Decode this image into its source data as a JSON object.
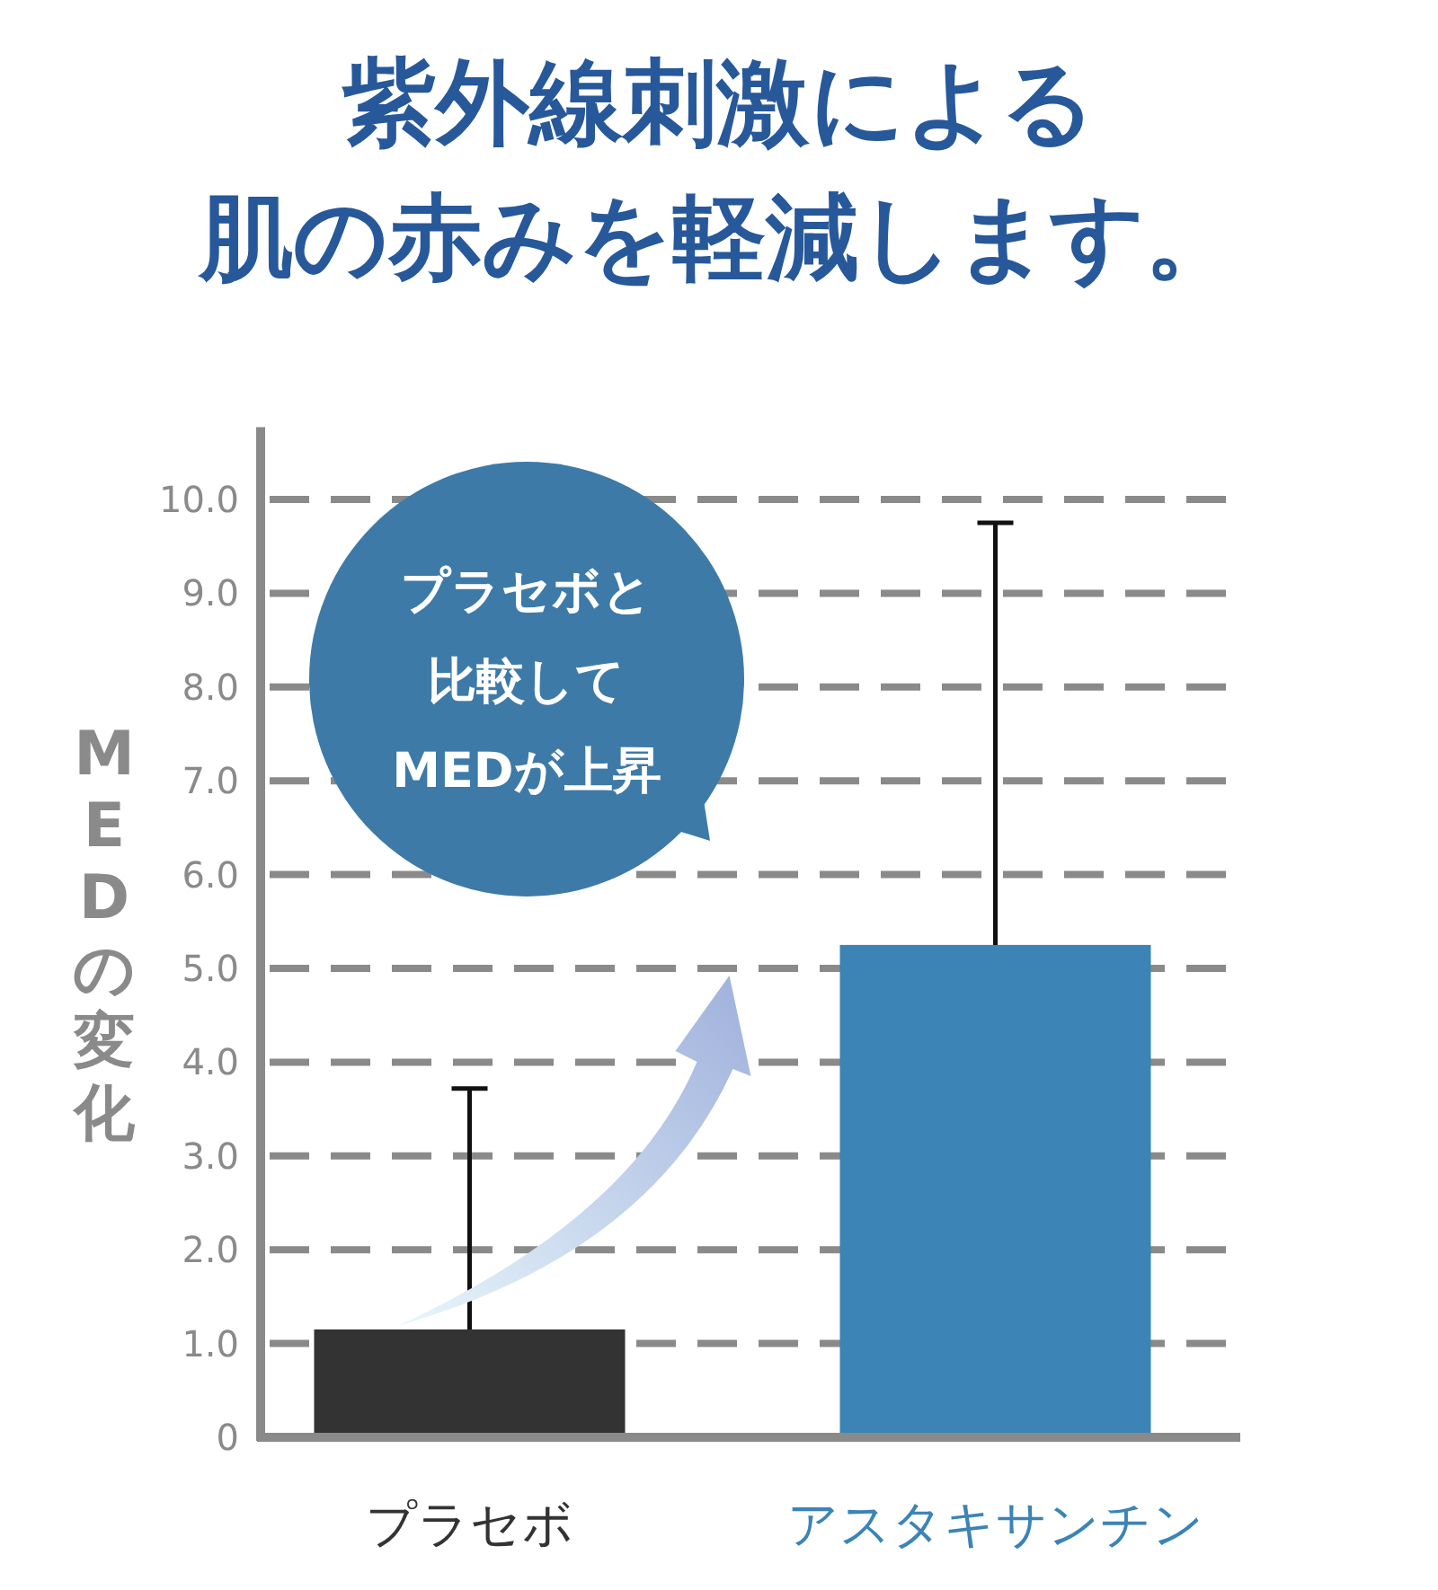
{
  "chart_data": {
    "type": "bar",
    "title": "紫外線刺激による",
    "subtitle": "肌の赤みを軽減します。",
    "ylabel": "MEDの変化",
    "categories": [
      "プラセボ",
      "アスタキサンチン"
    ],
    "values": [
      1.15,
      5.25
    ],
    "colors": [
      "#333333",
      "#3b84b5"
    ],
    "errors": [
      [
        1.15,
        3.72
      ],
      [
        5.25,
        9.75
      ]
    ],
    "ylim": [
      0,
      10.77
    ],
    "yticks": [
      0,
      {
        "value": 1,
        "label": "1.0"
      },
      {
        "value": 2,
        "label": "2.0"
      },
      {
        "value": 3,
        "label": "3.0"
      },
      {
        "value": 4,
        "label": "4.0"
      },
      {
        "value": 5,
        "label": "5.0"
      },
      {
        "value": 6,
        "label": "6.0"
      },
      {
        "value": 7,
        "label": "7.0"
      },
      {
        "value": 8,
        "label": "8.0"
      },
      {
        "value": 9,
        "label": "9.0"
      },
      {
        "value": 10,
        "label": "10.0"
      }
    ],
    "grid": "y",
    "annotations": [
      "プラセボと",
      "比較して",
      "MEDが上昇"
    ]
  }
}
